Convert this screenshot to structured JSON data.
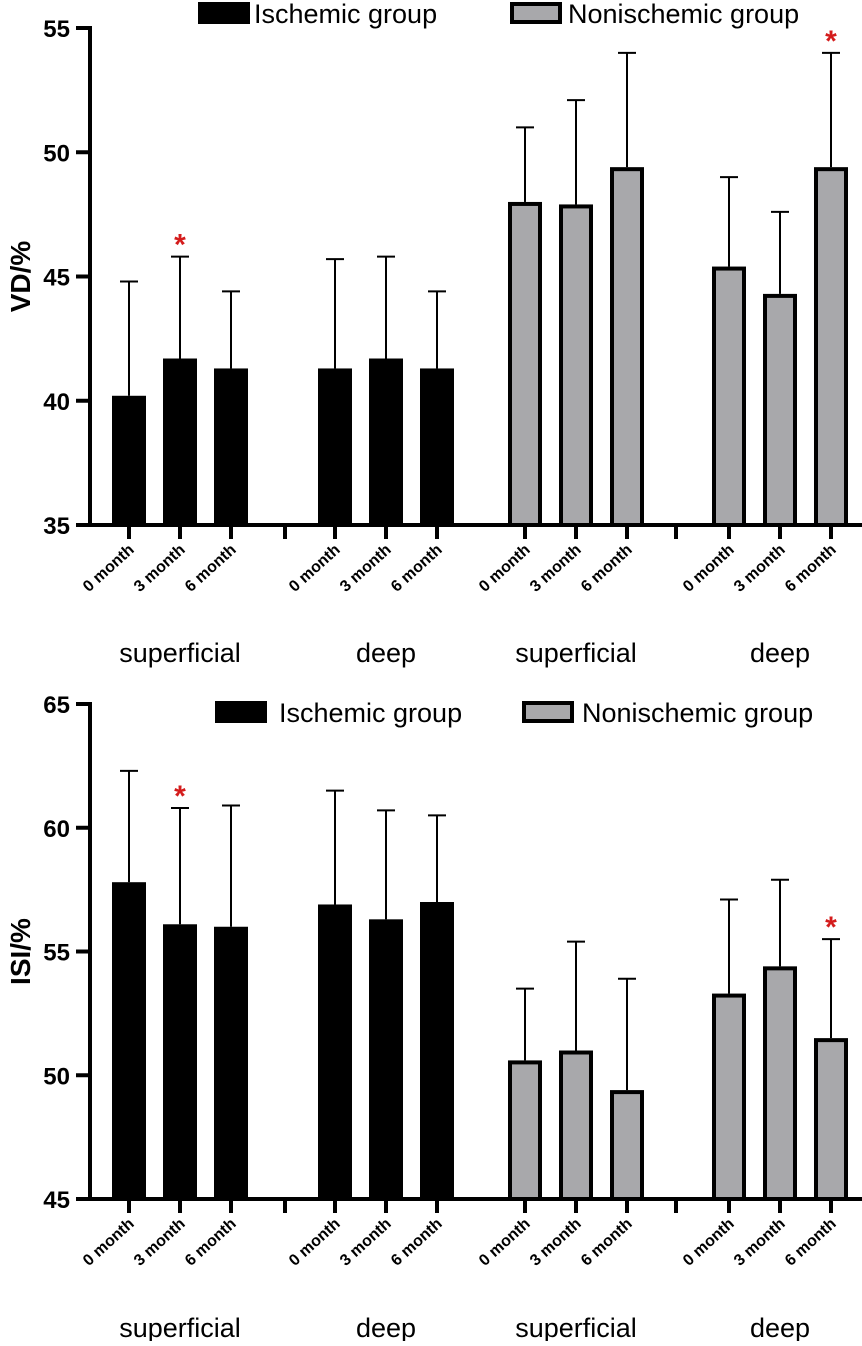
{
  "colors": {
    "ischemic": "#000000",
    "nonischemic": "#a8a8ab",
    "axis": "#000000",
    "significance": "#d41c1c"
  },
  "legend": {
    "ischemic": "Ischemic group",
    "nonischemic": "Nonischemic group"
  },
  "chart_data": [
    {
      "type": "bar",
      "title": "",
      "ylabel": "VD/%",
      "ylim": [
        35,
        55
      ],
      "yticks": [
        35,
        40,
        45,
        50,
        55
      ],
      "legend_position": "top",
      "groups": [
        {
          "label": "superficial",
          "series": "Ischemic group",
          "categories": [
            "0 month",
            "3 month",
            "6 month"
          ],
          "values": [
            40.2,
            41.7,
            41.3
          ],
          "errors_upper": [
            44.8,
            45.8,
            44.4
          ],
          "significance": [
            "",
            "*",
            ""
          ]
        },
        {
          "label": "deep",
          "series": "Ischemic group",
          "categories": [
            "0 month",
            "3 month",
            "6 month"
          ],
          "values": [
            41.3,
            41.7,
            41.3
          ],
          "errors_upper": [
            45.7,
            45.8,
            44.4
          ],
          "significance": [
            "",
            "",
            ""
          ]
        },
        {
          "label": "superficial",
          "series": "Nonischemic group",
          "categories": [
            "0 month",
            "3 month",
            "6 month"
          ],
          "values": [
            48.0,
            47.9,
            49.4
          ],
          "errors_upper": [
            51.0,
            52.1,
            54.0
          ],
          "significance": [
            "",
            "",
            ""
          ]
        },
        {
          "label": "deep",
          "series": "Nonischemic group",
          "categories": [
            "0 month",
            "3 month",
            "6 month"
          ],
          "values": [
            45.4,
            44.3,
            49.4
          ],
          "errors_upper": [
            49.0,
            47.6,
            54.0
          ],
          "significance": [
            "",
            "",
            "*"
          ]
        }
      ]
    },
    {
      "type": "bar",
      "title": "",
      "ylabel": "ISI/%",
      "ylim": [
        45,
        65
      ],
      "yticks": [
        45,
        50,
        55,
        60,
        65
      ],
      "legend_position": "top-right",
      "groups": [
        {
          "label": "superficial",
          "series": "Ischemic group",
          "categories": [
            "0 month",
            "3 month",
            "6 month"
          ],
          "values": [
            57.8,
            56.1,
            56.0
          ],
          "errors_upper": [
            62.3,
            60.8,
            60.9
          ],
          "significance": [
            "",
            "*",
            ""
          ]
        },
        {
          "label": "deep",
          "series": "Ischemic group",
          "categories": [
            "0 month",
            "3 month",
            "6 month"
          ],
          "values": [
            56.9,
            56.3,
            57.0
          ],
          "errors_upper": [
            61.5,
            60.7,
            60.5
          ],
          "significance": [
            "",
            "",
            ""
          ]
        },
        {
          "label": "superficial",
          "series": "Nonischemic group",
          "categories": [
            "0 month",
            "3 month",
            "6 month"
          ],
          "values": [
            50.6,
            51.0,
            49.4
          ],
          "errors_upper": [
            53.5,
            55.4,
            53.9
          ],
          "significance": [
            "",
            "",
            ""
          ]
        },
        {
          "label": "deep",
          "series": "Nonischemic group",
          "categories": [
            "0 month",
            "3 month",
            "6 month"
          ],
          "values": [
            53.3,
            54.4,
            51.5
          ],
          "errors_upper": [
            57.1,
            57.9,
            55.5
          ],
          "significance": [
            "",
            "",
            "*"
          ]
        }
      ]
    }
  ]
}
